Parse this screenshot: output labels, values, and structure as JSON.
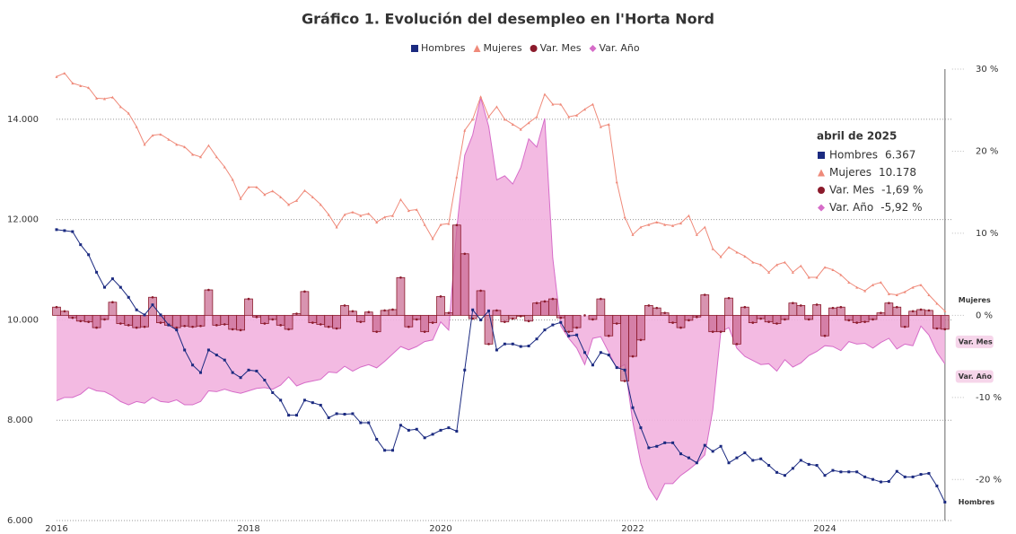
{
  "chart_data": {
    "type": "line",
    "title": "Gráfico 1. Evolución del desempleo en l'Horta Nord",
    "categories": [
      "2016",
      null,
      null,
      null,
      null,
      null,
      null,
      null,
      null,
      null,
      null,
      null,
      null,
      null,
      null,
      null,
      null,
      null,
      null,
      null,
      null,
      null,
      null,
      null,
      "2018",
      null,
      null,
      null,
      null,
      null,
      null,
      null,
      null,
      null,
      null,
      null,
      null,
      null,
      null,
      null,
      null,
      null,
      null,
      null,
      null,
      null,
      null,
      null,
      "2020",
      null,
      null,
      null,
      null,
      null,
      null,
      null,
      null,
      null,
      null,
      null,
      null,
      null,
      null,
      null,
      null,
      null,
      null,
      null,
      null,
      null,
      null,
      null,
      "2022",
      null,
      null,
      null,
      null,
      null,
      null,
      null,
      null,
      null,
      null,
      null,
      null,
      null,
      null,
      null,
      null,
      null,
      null,
      null,
      null,
      null,
      null,
      null,
      "2024",
      null,
      null,
      null,
      null,
      null,
      null,
      null,
      null,
      null,
      null,
      null,
      null,
      null,
      null,
      null
    ],
    "ylim": [
      6000,
      15000
    ],
    "yticks": [
      {
        "value": 6000,
        "label": "6.000"
      },
      {
        "value": 8000,
        "label": "8.000"
      },
      {
        "value": 10000,
        "label": "10.000"
      },
      {
        "value": 12000,
        "label": "12.000"
      },
      {
        "value": 14000,
        "label": "14.000"
      }
    ],
    "y2lim": [
      -25,
      30
    ],
    "y2ticks": [
      {
        "value": -20,
        "label": "-20 %"
      },
      {
        "value": -10,
        "label": "-10 %"
      },
      {
        "value": 0,
        "label": "0 %"
      },
      {
        "value": 10,
        "label": "10 %"
      },
      {
        "value": 20,
        "label": "20 %"
      },
      {
        "value": 30,
        "label": "30 %"
      }
    ],
    "grid": true,
    "legend": "top",
    "series": [
      {
        "name": "Hombres",
        "color": "#1b2a80",
        "marker": "square",
        "style": "line",
        "values": [
          11800,
          11780,
          11760,
          11500,
          11300,
          10950,
          10650,
          10820,
          10650,
          10450,
          10200,
          10100,
          10300,
          10100,
          9900,
          9800,
          9400,
          9100,
          8950,
          9400,
          9300,
          9200,
          8950,
          8850,
          9000,
          8980,
          8800,
          8550,
          8400,
          8100,
          8100,
          8400,
          8350,
          8300,
          8050,
          8130,
          8120,
          8130,
          7950,
          7950,
          7620,
          7400,
          7400,
          7900,
          7800,
          7820,
          7650,
          7720,
          7800,
          7850,
          7780,
          9000,
          10200,
          10000,
          10180,
          9400,
          9520,
          9520,
          9470,
          9480,
          9620,
          9800,
          9900,
          9950,
          9680,
          9700,
          9350,
          9100,
          9350,
          9300,
          9050,
          9000,
          8250,
          7850,
          7450,
          7480,
          7550,
          7550,
          7330,
          7250,
          7150,
          7500,
          7380,
          7480,
          7150,
          7250,
          7350,
          7200,
          7230,
          7100,
          6960,
          6900,
          7040,
          7200,
          7120,
          7100,
          6900,
          7000,
          6970,
          6970,
          6970,
          6870,
          6820,
          6770,
          6780,
          6980,
          6870,
          6870,
          6920,
          6940,
          6690,
          6367
        ]
      },
      {
        "name": "Mujeres",
        "color": "#ef8a7a",
        "marker": "triangle",
        "style": "line",
        "values": [
          14850,
          14920,
          14720,
          14670,
          14630,
          14420,
          14410,
          14440,
          14250,
          14120,
          13850,
          13500,
          13680,
          13700,
          13600,
          13500,
          13450,
          13300,
          13250,
          13480,
          13250,
          13050,
          12800,
          12420,
          12650,
          12650,
          12500,
          12570,
          12450,
          12300,
          12380,
          12580,
          12450,
          12300,
          12100,
          11850,
          12100,
          12150,
          12080,
          12120,
          11950,
          12050,
          12080,
          12400,
          12180,
          12200,
          11900,
          11620,
          11900,
          11920,
          12850,
          13780,
          14000,
          14450,
          14050,
          14250,
          14000,
          13900,
          13800,
          13930,
          14050,
          14500,
          14300,
          14300,
          14050,
          14080,
          14200,
          14300,
          13850,
          13900,
          12750,
          12050,
          11700,
          11850,
          11900,
          11950,
          11900,
          11880,
          11930,
          12080,
          11700,
          11850,
          11420,
          11260,
          11450,
          11350,
          11270,
          11150,
          11100,
          10950,
          11100,
          11150,
          10950,
          11080,
          10850,
          10850,
          11050,
          11000,
          10900,
          10750,
          10650,
          10580,
          10700,
          10750,
          10520,
          10500,
          10560,
          10650,
          10700,
          10500,
          10330,
          10178
        ]
      },
      {
        "name": "Var. Mes",
        "color": "#8b1a2b",
        "marker": "circle",
        "style": "step",
        "axis": "y2",
        "values": [
          1.0,
          0.5,
          -0.3,
          -0.7,
          -0.8,
          -1.5,
          -0.5,
          1.6,
          -1.0,
          -1.2,
          -1.5,
          -1.4,
          2.2,
          -0.9,
          -1.2,
          -1.5,
          -1.3,
          -1.4,
          -1.3,
          3.1,
          -1.2,
          -1.1,
          -1.7,
          -1.8,
          2.0,
          -0.2,
          -1.0,
          -0.5,
          -1.2,
          -1.7,
          0.2,
          2.9,
          -0.9,
          -1.1,
          -1.4,
          -1.6,
          1.2,
          0.5,
          -0.8,
          0.4,
          -2.0,
          0.6,
          0.7,
          4.6,
          -1.4,
          -0.5,
          -2.0,
          -0.9,
          2.3,
          0.3,
          11.0,
          7.5,
          -0.4,
          3.0,
          -3.5,
          0.6,
          -0.8,
          -0.4,
          -0.1,
          -0.7,
          1.5,
          1.7,
          2.0,
          -0.3,
          -2.0,
          -1.5,
          0.0,
          -0.5,
          2.0,
          -2.5,
          -1.0,
          -8.0,
          -5.0,
          -3.0,
          1.2,
          0.9,
          0.3,
          -0.9,
          -1.5,
          -0.6,
          -0.2,
          2.5,
          -2.0,
          -2.0,
          2.1,
          -3.5,
          1.0,
          -0.9,
          -0.4,
          -0.8,
          -1.0,
          -0.5,
          1.5,
          1.2,
          -0.5,
          1.3,
          -2.5,
          0.9,
          1.0,
          -0.6,
          -0.9,
          -0.8,
          -0.5,
          0.3,
          1.5,
          1.0,
          -1.4,
          0.5,
          0.7,
          0.6,
          -1.6,
          -1.69
        ]
      },
      {
        "name": "Var. Año",
        "color": "#d66cc8",
        "marker": "diamond",
        "style": "area",
        "axis": "y2",
        "values": [
          -10.4,
          -10.0,
          -10.0,
          -9.6,
          -8.8,
          -9.2,
          -9.3,
          -9.8,
          -10.5,
          -10.9,
          -10.5,
          -10.7,
          -10.0,
          -10.5,
          -10.6,
          -10.3,
          -10.9,
          -10.9,
          -10.5,
          -9.2,
          -9.3,
          -9.0,
          -9.3,
          -9.5,
          -9.2,
          -8.9,
          -8.8,
          -9.0,
          -8.5,
          -7.5,
          -8.6,
          -8.2,
          -8.0,
          -7.8,
          -6.9,
          -7.0,
          -6.2,
          -6.8,
          -6.3,
          -6.0,
          -6.4,
          -5.6,
          -4.7,
          -3.8,
          -4.2,
          -3.8,
          -3.2,
          -3.0,
          -0.8,
          -1.8,
          10.5,
          19.5,
          22.0,
          26.5,
          23.0,
          16.5,
          17.0,
          16.0,
          18.0,
          21.5,
          20.5,
          24.0,
          7.0,
          -1.3,
          -2.8,
          -4.0,
          -6.0,
          -2.8,
          -2.6,
          -4.5,
          -6.5,
          -6.0,
          -13.0,
          -18.0,
          -21.0,
          -22.5,
          -20.5,
          -20.5,
          -19.5,
          -18.8,
          -18.0,
          -17.0,
          -11.5,
          -2.0,
          -1.5,
          -4.0,
          -5.0,
          -5.5,
          -6.0,
          -5.9,
          -6.8,
          -5.4,
          -6.3,
          -5.8,
          -4.9,
          -4.4,
          -3.7,
          -3.8,
          -4.3,
          -3.2,
          -3.5,
          -3.4,
          -4.0,
          -3.3,
          -2.8,
          -4.1,
          -3.5,
          -3.7,
          -1.3,
          -2.4,
          -4.5,
          -5.92
        ]
      }
    ],
    "tooltip": {
      "title": "abril de 2025",
      "rows": [
        "6.367",
        "10.178",
        "-1,69 %",
        "-5,92 %"
      ]
    }
  }
}
